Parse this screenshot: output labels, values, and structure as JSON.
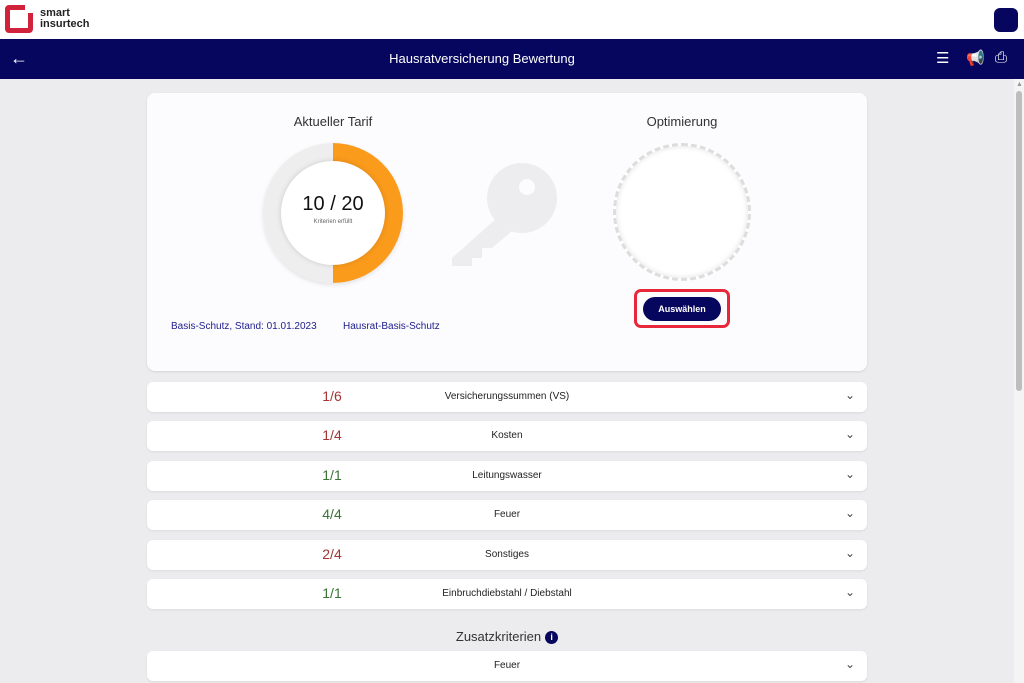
{
  "brand": {
    "line1": "smart",
    "line2": "insurtech"
  },
  "nav": {
    "title": "Hausratversicherung Bewertung",
    "back": "←",
    "icons": [
      "list-icon",
      "megaphone-icon",
      "print-icon"
    ]
  },
  "current": {
    "heading": "Aktueller Tarif",
    "score": "10 / 20",
    "score_label": "Kriterien erfüllt",
    "fulfilled": 10,
    "total": 20,
    "tariff": "Basis-Schutz, Stand: 01.01.2023",
    "product": "Hausrat-Basis-Schutz"
  },
  "optimization": {
    "heading": "Optimierung",
    "select_label": "Auswählen"
  },
  "categories": [
    {
      "fraction": "1/6",
      "label": "Versicherungssummen (VS)",
      "status": "red"
    },
    {
      "fraction": "1/4",
      "label": "Kosten",
      "status": "red"
    },
    {
      "fraction": "1/1",
      "label": "Leitungswasser",
      "status": "green"
    },
    {
      "fraction": "4/4",
      "label": "Feuer",
      "status": "green"
    },
    {
      "fraction": "2/4",
      "label": "Sonstiges",
      "status": "red"
    },
    {
      "fraction": "1/1",
      "label": "Einbruchdiebstahl / Diebstahl",
      "status": "green"
    }
  ],
  "extra": {
    "heading": "Zusatzkriterien",
    "info": "i",
    "items": [
      {
        "label": "Feuer"
      }
    ]
  },
  "colors": {
    "primary": "#06065e",
    "accent": "#fb9b1c",
    "red": "#a23535",
    "green": "#3b7235",
    "highlight": "#e8283a"
  }
}
